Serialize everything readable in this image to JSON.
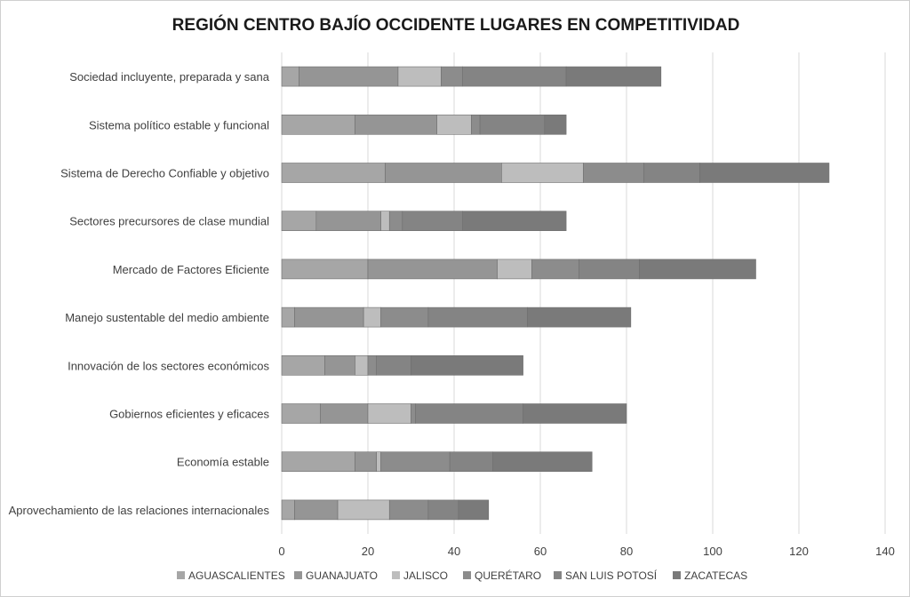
{
  "chart_data": {
    "type": "bar",
    "orientation": "horizontal",
    "stacked": true,
    "title": "REGIÓN CENTRO BAJÍO OCCIDENTE LUGARES EN COMPETITIVIDAD",
    "xlim": [
      0,
      140
    ],
    "xticks": [
      "0",
      "20",
      "40",
      "60",
      "80",
      "100",
      "120",
      "140"
    ],
    "grid": true,
    "legend_position": "bottom",
    "categories": [
      "Sociedad incluyente, preparada y sana",
      "Sistema político estable y funcional",
      "Sistema de Derecho Confiable y objetivo",
      "Sectores precursores de clase mundial",
      "Mercado de Factores Eficiente",
      "Manejo sustentable del medio ambiente",
      "Innovación de los sectores económicos",
      "Gobiernos eficientes y eficaces",
      "Economía estable",
      "Aprovechamiento de las relaciones internacionales"
    ],
    "series": [
      {
        "name": "AGUASCALIENTES",
        "color": "#a6a6a6",
        "values": [
          4,
          17,
          24,
          8,
          20,
          3,
          10,
          9,
          17,
          3
        ]
      },
      {
        "name": "GUANAJUATO",
        "color": "#959595",
        "values": [
          23,
          19,
          27,
          15,
          30,
          16,
          7,
          11,
          5,
          10
        ]
      },
      {
        "name": "JALISCO",
        "color": "#bdbdbd",
        "values": [
          10,
          8,
          19,
          2,
          8,
          4,
          3,
          10,
          1,
          12
        ]
      },
      {
        "name": "QUERÉTARO",
        "color": "#8c8c8c",
        "values": [
          5,
          2,
          14,
          3,
          11,
          11,
          2,
          1,
          16,
          9
        ]
      },
      {
        "name": "SAN LUIS POTOSÍ",
        "color": "#848484",
        "values": [
          24,
          15,
          13,
          14,
          14,
          23,
          8,
          25,
          10,
          7
        ]
      },
      {
        "name": "ZACATECAS",
        "color": "#7a7a7a",
        "values": [
          22,
          5,
          30,
          24,
          27,
          24,
          26,
          24,
          23,
          7
        ]
      }
    ]
  }
}
